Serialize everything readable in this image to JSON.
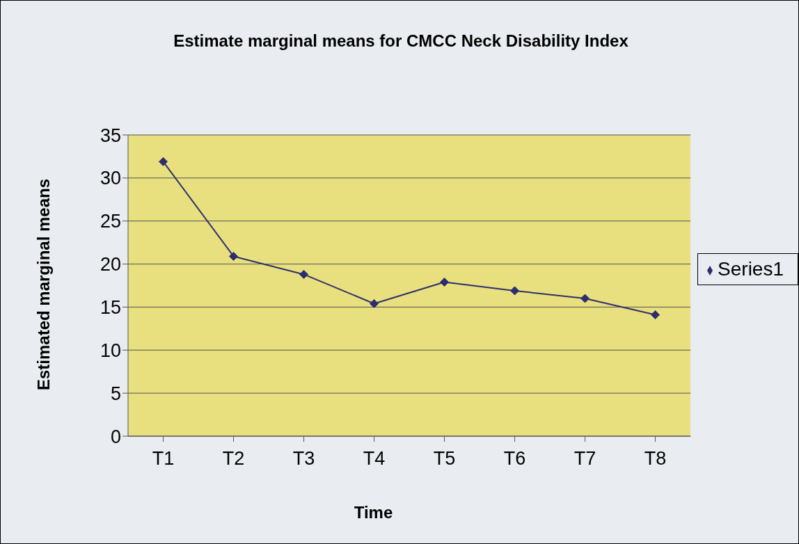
{
  "chart_data": {
    "type": "line",
    "title": "Estimate marginal means for CMCC Neck Disability Index",
    "xlabel": "Time",
    "ylabel": "Estimated marginal means",
    "categories": [
      "T1",
      "T2",
      "T3",
      "T4",
      "T5",
      "T6",
      "T7",
      "T8"
    ],
    "series": [
      {
        "name": "Series1",
        "color": "#2e2e6e",
        "values": [
          31.9,
          20.9,
          18.8,
          15.4,
          17.9,
          16.9,
          16.0,
          14.1
        ]
      }
    ],
    "ylim": [
      0,
      35
    ],
    "yticks": [
      0,
      5,
      10,
      15,
      20,
      25,
      30,
      35
    ],
    "grid": "y",
    "legend": "right",
    "marker": "diamond",
    "line_style": "solid"
  }
}
